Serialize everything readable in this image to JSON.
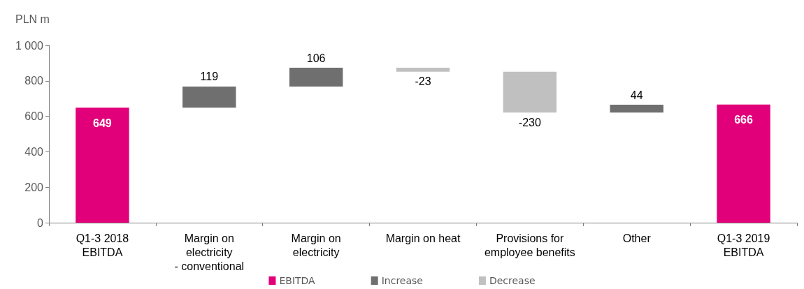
{
  "chart_data": {
    "type": "bar",
    "ylabel": "PLN m",
    "categories": [
      "Q1-3 2018\nEBITDA",
      "Margin on\nelectricity\n- conventional",
      "Margin on\nelectricity",
      "Margin on heat",
      "Provisions for\nemployee benefits",
      "Other",
      "Q1-3 2019\nEBITDA"
    ],
    "series": [
      {
        "name": "EBITDA",
        "color": "#e2007a",
        "values": [
          649,
          null,
          null,
          null,
          null,
          null,
          666
        ],
        "base": [
          0,
          null,
          null,
          null,
          null,
          null,
          0
        ]
      },
      {
        "name": "Increase",
        "color": "#6f6f6f",
        "values": [
          null,
          119,
          106,
          null,
          null,
          44,
          null
        ],
        "base": [
          null,
          649,
          768,
          null,
          null,
          621,
          null
        ]
      },
      {
        "name": "Decrease",
        "color": "#c0c0c0",
        "values": [
          null,
          null,
          null,
          -23,
          -230,
          null,
          null
        ],
        "base": [
          null,
          null,
          null,
          874,
          851,
          null,
          null
        ]
      }
    ],
    "ylim": [
      0,
      1000
    ],
    "yticks": [
      0,
      200,
      400,
      600,
      800,
      {
        "value": 1000,
        "label": "1 000"
      }
    ],
    "grid": false,
    "legend": "bottom",
    "data_labels": true
  }
}
